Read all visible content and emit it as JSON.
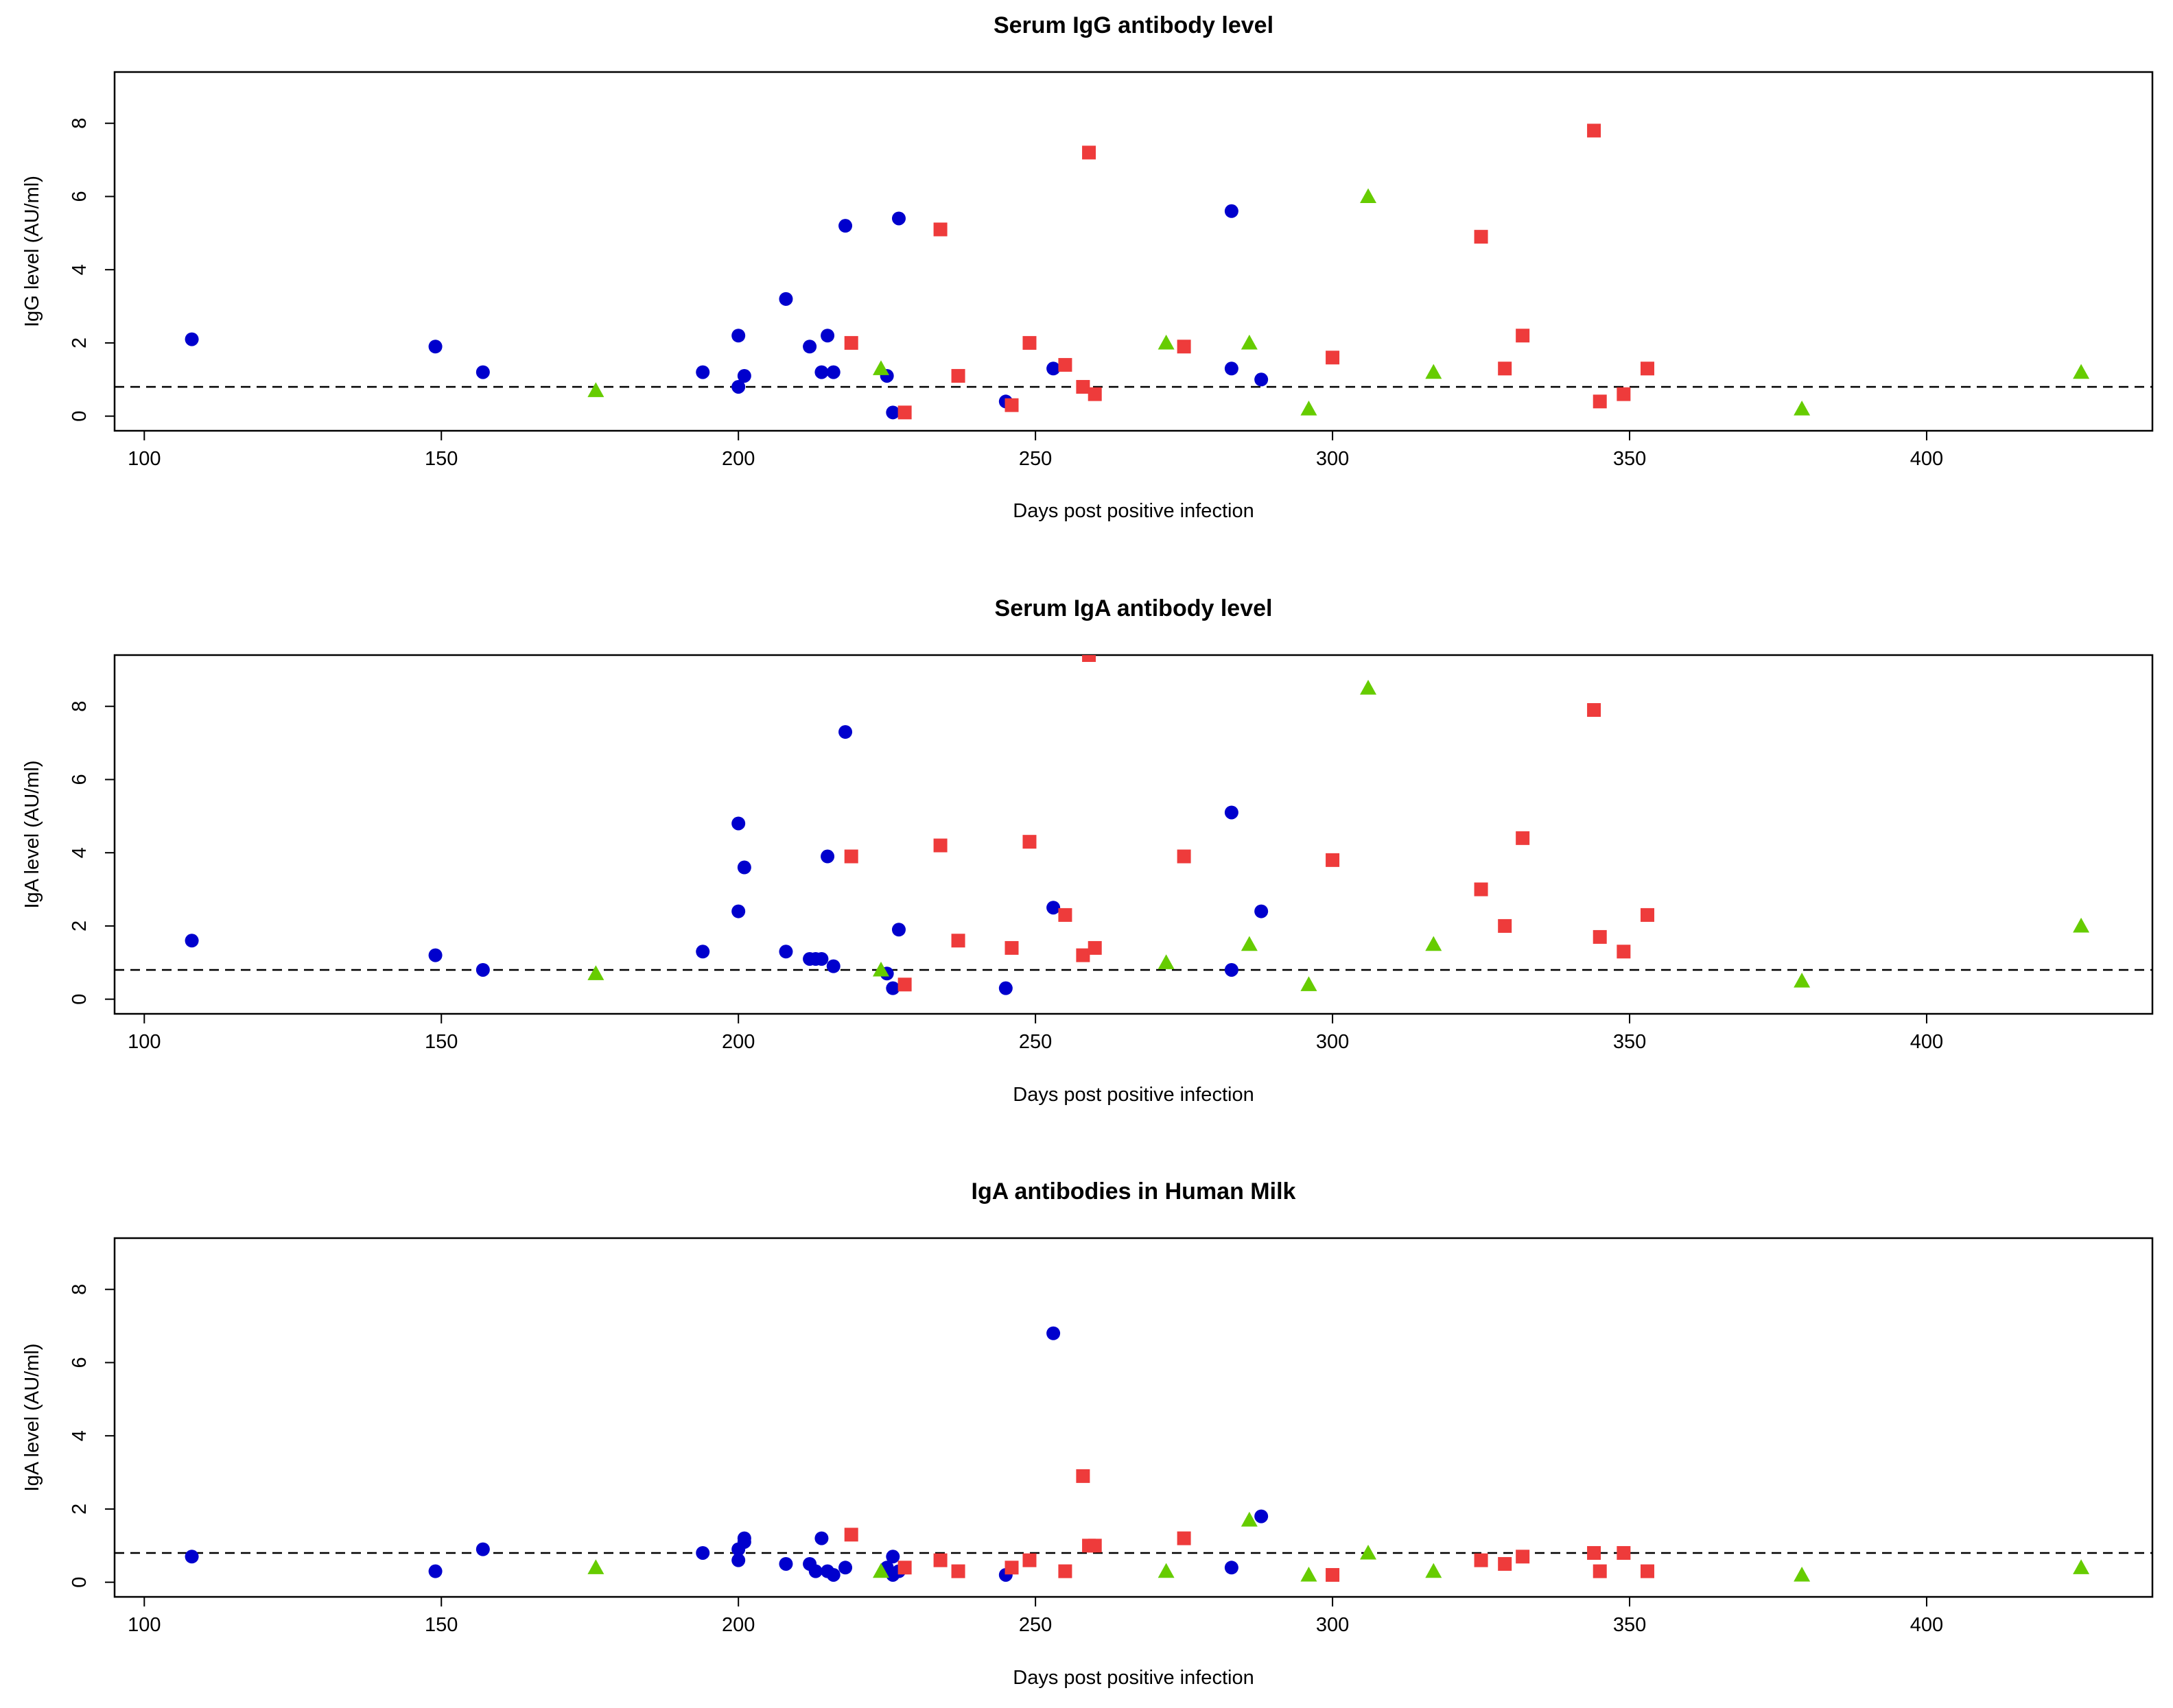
{
  "colors": {
    "blue": "#0000CD",
    "red": "#EE3B3B",
    "green": "#66CC00"
  },
  "chart_data": [
    {
      "type": "scatter",
      "title": "Serum IgG antibody level",
      "xlabel": "Days post positive infection",
      "ylabel": "IgG level (AU/ml)",
      "xlim": [
        95,
        438
      ],
      "ylim": [
        -0.4,
        9.4
      ],
      "xticks": [
        100,
        150,
        200,
        250,
        300,
        350,
        400
      ],
      "yticks": [
        0,
        2,
        4,
        6,
        8
      ],
      "threshold": 0.8,
      "series": [
        {
          "name": "circles",
          "marker": "circle",
          "color": "#0000CD",
          "x": [
            108,
            149,
            157,
            194,
            200,
            200,
            201,
            208,
            212,
            214,
            215,
            216,
            218,
            225,
            226,
            227,
            245,
            253,
            283,
            283,
            288
          ],
          "y": [
            2.1,
            1.9,
            1.2,
            1.2,
            0.8,
            2.2,
            1.1,
            3.2,
            1.9,
            1.2,
            2.2,
            1.2,
            5.2,
            1.1,
            0.1,
            5.4,
            0.4,
            1.3,
            5.6,
            1.3,
            1.0
          ]
        },
        {
          "name": "squares",
          "marker": "square",
          "color": "#EE3B3B",
          "x": [
            219,
            228,
            234,
            237,
            246,
            249,
            255,
            258,
            259,
            260,
            275,
            300,
            325,
            329,
            332,
            344,
            345,
            349,
            353
          ],
          "y": [
            2.0,
            0.1,
            5.1,
            1.1,
            0.3,
            2.0,
            1.4,
            0.8,
            7.2,
            0.6,
            1.9,
            1.6,
            4.9,
            1.3,
            2.2,
            7.8,
            0.4,
            0.6,
            1.3
          ]
        },
        {
          "name": "triangles",
          "marker": "triangle",
          "color": "#66CC00",
          "x": [
            176,
            224,
            272,
            286,
            296,
            306,
            317,
            379,
            426
          ],
          "y": [
            0.7,
            1.3,
            2.0,
            2.0,
            0.2,
            6.0,
            1.2,
            0.2,
            1.2
          ]
        }
      ]
    },
    {
      "type": "scatter",
      "title": "Serum IgA antibody level",
      "xlabel": "Days post positive infection",
      "ylabel": "IgA level (AU/ml)",
      "xlim": [
        95,
        438
      ],
      "ylim": [
        -0.4,
        9.4
      ],
      "xticks": [
        100,
        150,
        200,
        250,
        300,
        350,
        400
      ],
      "yticks": [
        0,
        2,
        4,
        6,
        8
      ],
      "threshold": 0.8,
      "series": [
        {
          "name": "circles",
          "marker": "circle",
          "color": "#0000CD",
          "x": [
            108,
            149,
            157,
            194,
            200,
            200,
            201,
            208,
            212,
            213,
            214,
            215,
            216,
            218,
            225,
            226,
            227,
            245,
            253,
            283,
            283,
            288
          ],
          "y": [
            1.6,
            1.2,
            0.8,
            1.3,
            4.8,
            2.4,
            3.6,
            1.3,
            1.1,
            1.1,
            1.1,
            3.9,
            0.9,
            7.3,
            0.7,
            0.3,
            1.9,
            0.3,
            2.5,
            5.1,
            0.8,
            2.4
          ]
        },
        {
          "name": "squares",
          "marker": "square",
          "color": "#EE3B3B",
          "x": [
            219,
            228,
            234,
            237,
            246,
            249,
            255,
            258,
            259,
            260,
            275,
            300,
            325,
            329,
            332,
            344,
            345,
            349,
            353
          ],
          "y": [
            3.9,
            0.4,
            4.2,
            1.6,
            1.4,
            4.3,
            2.3,
            1.2,
            9.4,
            1.4,
            3.9,
            3.8,
            3.0,
            2.0,
            4.4,
            7.9,
            1.7,
            1.3,
            2.3
          ]
        },
        {
          "name": "triangles",
          "marker": "triangle",
          "color": "#66CC00",
          "x": [
            176,
            224,
            272,
            286,
            296,
            306,
            317,
            379,
            426
          ],
          "y": [
            0.7,
            0.8,
            1.0,
            1.5,
            0.4,
            8.5,
            1.5,
            0.5,
            2.0
          ]
        }
      ]
    },
    {
      "type": "scatter",
      "title": "IgA antibodies in Human Milk",
      "xlabel": "Days post positive infection",
      "ylabel": "IgA level (AU/ml)",
      "xlim": [
        95,
        438
      ],
      "ylim": [
        -0.4,
        9.4
      ],
      "xticks": [
        100,
        150,
        200,
        250,
        300,
        350,
        400
      ],
      "yticks": [
        0,
        2,
        4,
        6,
        8
      ],
      "threshold": 0.8,
      "series": [
        {
          "name": "circles",
          "marker": "circle",
          "color": "#0000CD",
          "x": [
            108,
            149,
            157,
            194,
            200,
            200,
            201,
            201,
            208,
            212,
            213,
            214,
            215,
            216,
            218,
            225,
            226,
            226,
            227,
            245,
            253,
            283,
            288
          ],
          "y": [
            0.7,
            0.3,
            0.9,
            0.8,
            0.6,
            0.9,
            1.1,
            1.2,
            0.5,
            0.5,
            0.3,
            1.2,
            0.3,
            0.2,
            0.4,
            0.4,
            0.7,
            0.2,
            0.3,
            0.2,
            6.8,
            0.4,
            1.8
          ]
        },
        {
          "name": "squares",
          "marker": "square",
          "color": "#EE3B3B",
          "x": [
            219,
            228,
            234,
            237,
            246,
            249,
            255,
            258,
            259,
            260,
            275,
            300,
            325,
            329,
            332,
            344,
            345,
            349,
            353
          ],
          "y": [
            1.3,
            0.4,
            0.6,
            0.3,
            0.4,
            0.6,
            0.3,
            2.9,
            1.0,
            1.0,
            1.2,
            0.2,
            0.6,
            0.5,
            0.7,
            0.8,
            0.3,
            0.8,
            0.3
          ]
        },
        {
          "name": "triangles",
          "marker": "triangle",
          "color": "#66CC00",
          "x": [
            176,
            224,
            272,
            286,
            296,
            306,
            317,
            379,
            426
          ],
          "y": [
            0.4,
            0.3,
            0.3,
            1.7,
            0.2,
            0.8,
            0.3,
            0.2,
            0.4
          ]
        }
      ]
    }
  ]
}
